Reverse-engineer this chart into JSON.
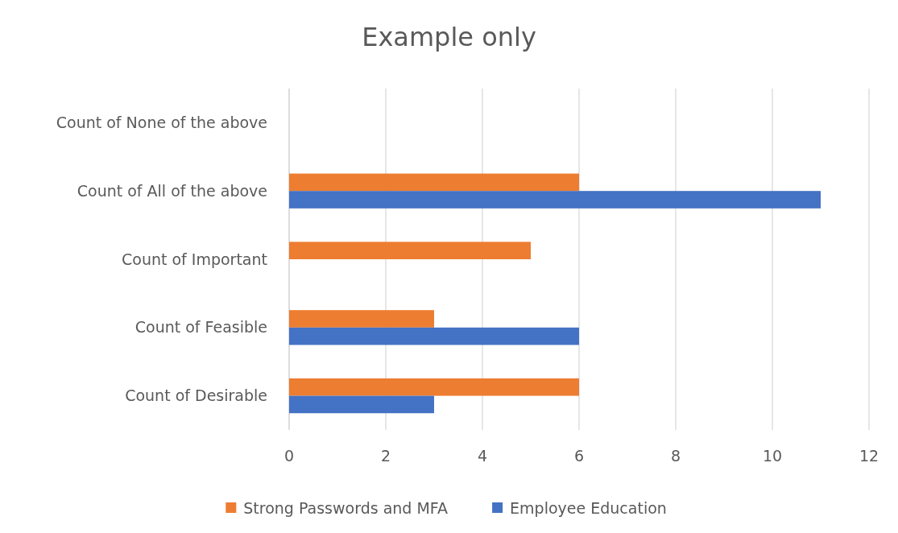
{
  "chart_data": {
    "type": "bar",
    "orientation": "horizontal",
    "title": "Example only",
    "categories": [
      "Count of None of the above",
      "Count of All of the above",
      "Count of Important",
      "Count of Feasible",
      "Count of Desirable"
    ],
    "series": [
      {
        "name": "Strong Passwords and MFA",
        "color": "#ed7d31",
        "values": [
          null,
          6,
          5,
          3,
          6
        ]
      },
      {
        "name": "Employee Education",
        "color": "#4472c4",
        "values": [
          null,
          11,
          null,
          6,
          3
        ]
      }
    ],
    "xlim": [
      0,
      12
    ],
    "xticks": [
      0,
      2,
      4,
      6,
      8,
      10,
      12
    ],
    "grid": "x",
    "legend": "bottom"
  }
}
